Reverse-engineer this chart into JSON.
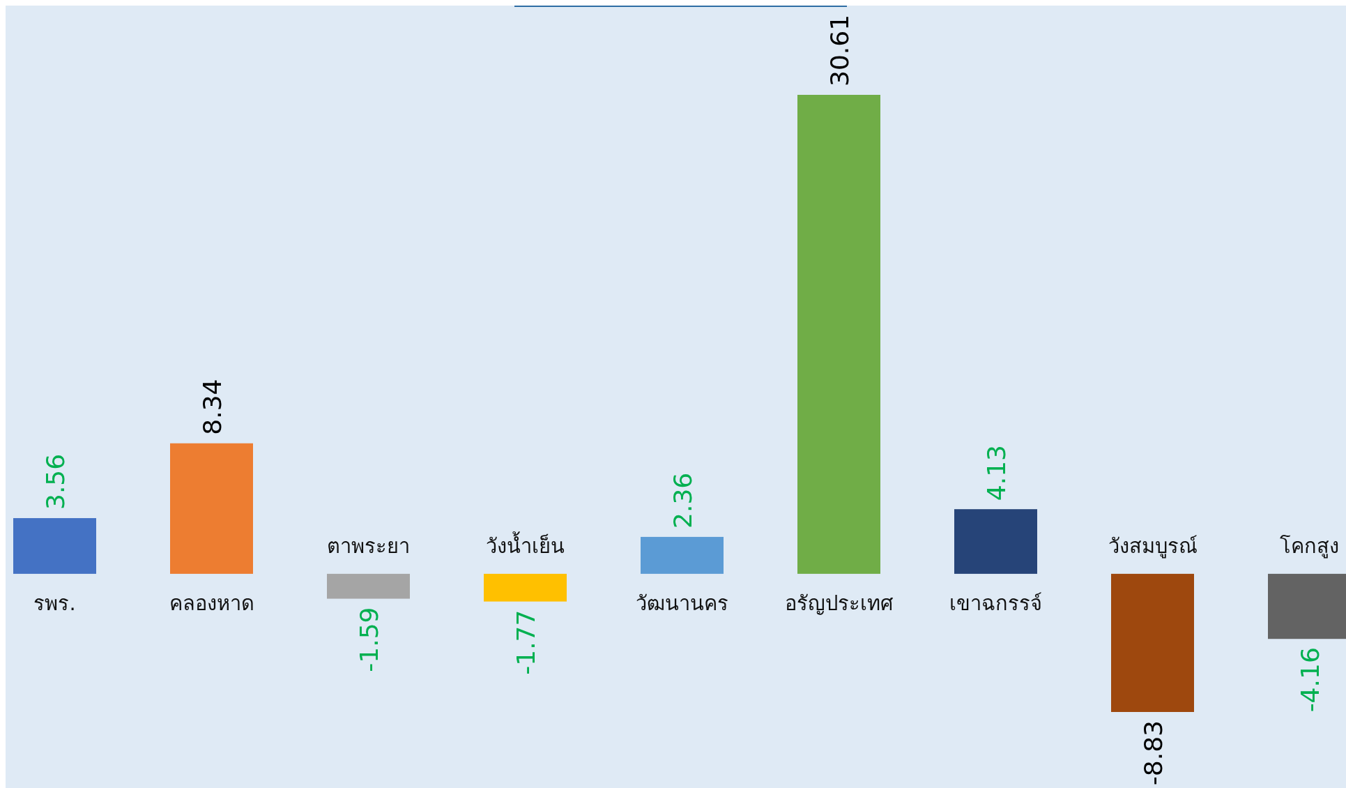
{
  "chart_data": {
    "type": "bar",
    "categories": [
      "รพร.",
      "คลองหาด",
      "ตาพระยา",
      "วังน้ำเย็น",
      "วัฒนานคร",
      "อรัญประเทศ",
      "เขาฉกรรจ์",
      "วังสมบูรณ์",
      "โคกสูง"
    ],
    "values": [
      3.56,
      8.34,
      -1.59,
      -1.77,
      2.36,
      30.61,
      4.13,
      -8.83,
      -4.16
    ],
    "colors": [
      "#4472c4",
      "#ed7d31",
      "#a5a5a5",
      "#ffc000",
      "#5b9bd5",
      "#70ad47",
      "#264478",
      "#9e480e",
      "#636363"
    ],
    "data_labels": true
  }
}
